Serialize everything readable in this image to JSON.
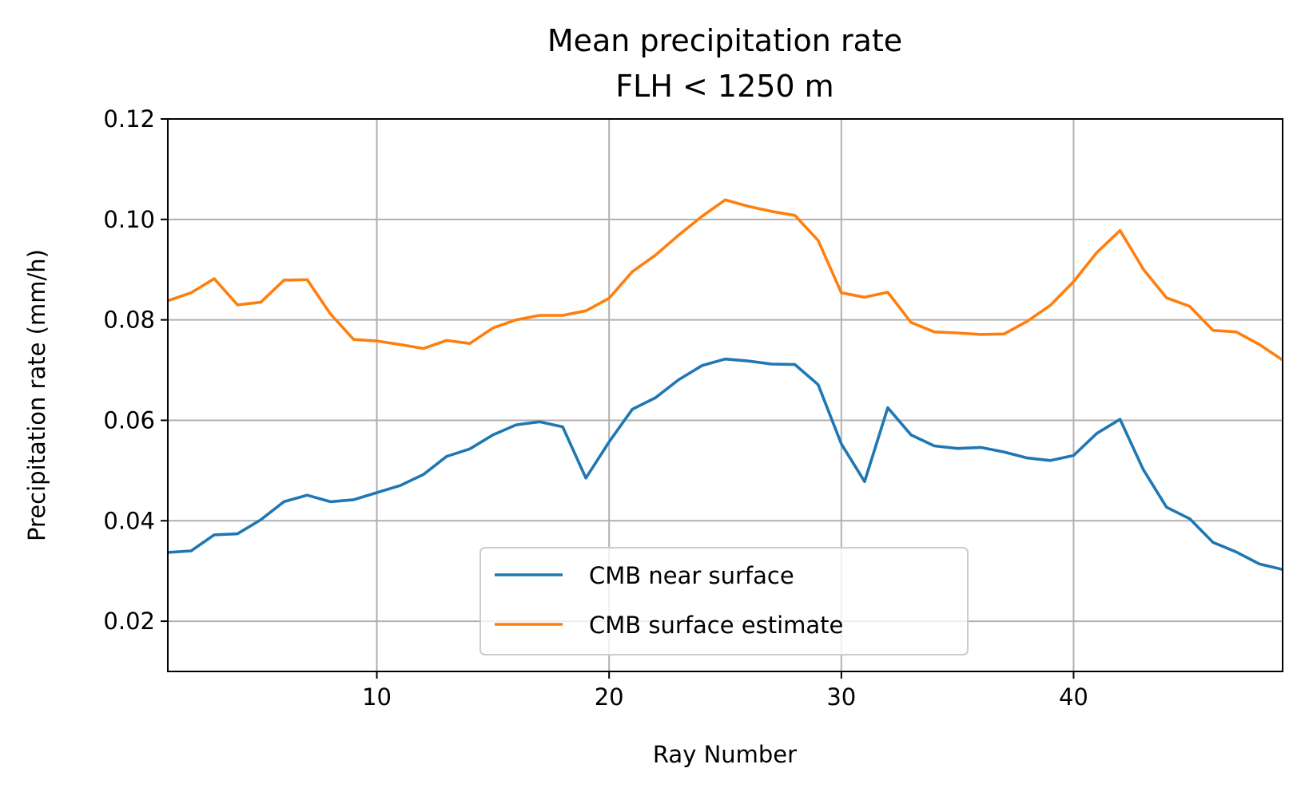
{
  "chart_data": {
    "type": "line",
    "title": "Mean precipitation rate",
    "subtitle": "FLH < 1250 m",
    "xlabel": "Ray Number",
    "ylabel": "Precipitation rate (mm/h)",
    "xlim": [
      1,
      49
    ],
    "ylim": [
      0.01,
      0.12
    ],
    "xticks": [
      10,
      20,
      30,
      40
    ],
    "xtick_labels": [
      "10",
      "20",
      "30",
      "40"
    ],
    "yticks": [
      0.02,
      0.04,
      0.06,
      0.08,
      0.1,
      0.12
    ],
    "ytick_labels": [
      "0.02",
      "0.04",
      "0.06",
      "0.08",
      "0.10",
      "0.12"
    ],
    "grid": true,
    "legend_position": "lower-center",
    "x": [
      1,
      2,
      3,
      4,
      5,
      6,
      7,
      8,
      9,
      10,
      11,
      12,
      13,
      14,
      15,
      16,
      17,
      18,
      19,
      20,
      21,
      22,
      23,
      24,
      25,
      26,
      27,
      28,
      29,
      30,
      31,
      32,
      33,
      34,
      35,
      36,
      37,
      38,
      39,
      40,
      41,
      42,
      43,
      44,
      45,
      46,
      47,
      48,
      49
    ],
    "series": [
      {
        "name": "CMB near surface",
        "color": "#1f77b4",
        "values": [
          0.0337,
          0.034,
          0.0372,
          0.0374,
          0.0402,
          0.0438,
          0.0451,
          0.0438,
          0.0442,
          0.0456,
          0.047,
          0.0492,
          0.0528,
          0.0543,
          0.0571,
          0.0591,
          0.0597,
          0.0587,
          0.0485,
          0.0557,
          0.0622,
          0.0645,
          0.0681,
          0.0709,
          0.0722,
          0.0718,
          0.0712,
          0.0711,
          0.0671,
          0.0553,
          0.0478,
          0.0625,
          0.0571,
          0.0549,
          0.0544,
          0.0546,
          0.0537,
          0.0525,
          0.052,
          0.053,
          0.0574,
          0.0602,
          0.0502,
          0.0427,
          0.0404,
          0.0357,
          0.0338,
          0.0314,
          0.0303
        ]
      },
      {
        "name": "CMB surface estimate",
        "color": "#ff7f0e",
        "values": [
          0.0838,
          0.0854,
          0.0882,
          0.083,
          0.0835,
          0.0879,
          0.088,
          0.0812,
          0.0761,
          0.0758,
          0.0751,
          0.0743,
          0.0759,
          0.0753,
          0.0784,
          0.08,
          0.0809,
          0.0809,
          0.0818,
          0.0843,
          0.0896,
          0.0929,
          0.0969,
          0.1006,
          0.1039,
          0.1026,
          0.1016,
          0.1008,
          0.0958,
          0.0854,
          0.0845,
          0.0855,
          0.0795,
          0.0776,
          0.0774,
          0.0771,
          0.0772,
          0.0797,
          0.0829,
          0.0876,
          0.0934,
          0.0978,
          0.0901,
          0.0844,
          0.0827,
          0.0779,
          0.0776,
          0.0751,
          0.072
        ]
      }
    ]
  }
}
